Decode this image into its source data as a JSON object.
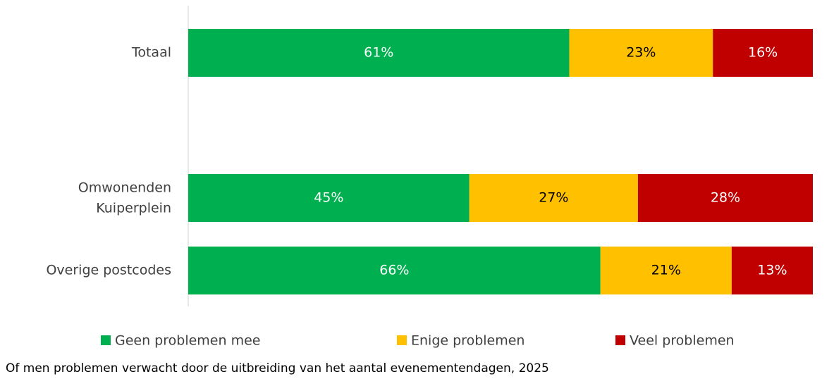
{
  "chart_data": {
    "type": "stacked-bar-horizontal",
    "caption": "Of men problemen verwacht door de uitbreiding van het aantal evenementendagen, 2025",
    "categories": [
      "Totaal",
      null,
      "Omwonenden Kuiperplein",
      "Overige postcodes"
    ],
    "xlim": [
      0,
      100
    ],
    "series": [
      {
        "name": "Geen problemen mee",
        "color": "#00b050",
        "label_color": "#ffffff",
        "values": [
          61,
          null,
          45,
          66
        ],
        "value_labels": [
          "61%",
          null,
          "45%",
          "66%"
        ]
      },
      {
        "name": "Enige problemen",
        "color": "#ffc000",
        "label_color": "#000000",
        "values": [
          23,
          null,
          27,
          21
        ],
        "value_labels": [
          "23%",
          null,
          "27%",
          "21%"
        ]
      },
      {
        "name": "Veel problemen",
        "color": "#c00000",
        "label_color": "#ffffff",
        "values": [
          16,
          null,
          28,
          13
        ],
        "value_labels": [
          "16%",
          null,
          "28%",
          "13%"
        ]
      }
    ],
    "legend": "bottom"
  }
}
